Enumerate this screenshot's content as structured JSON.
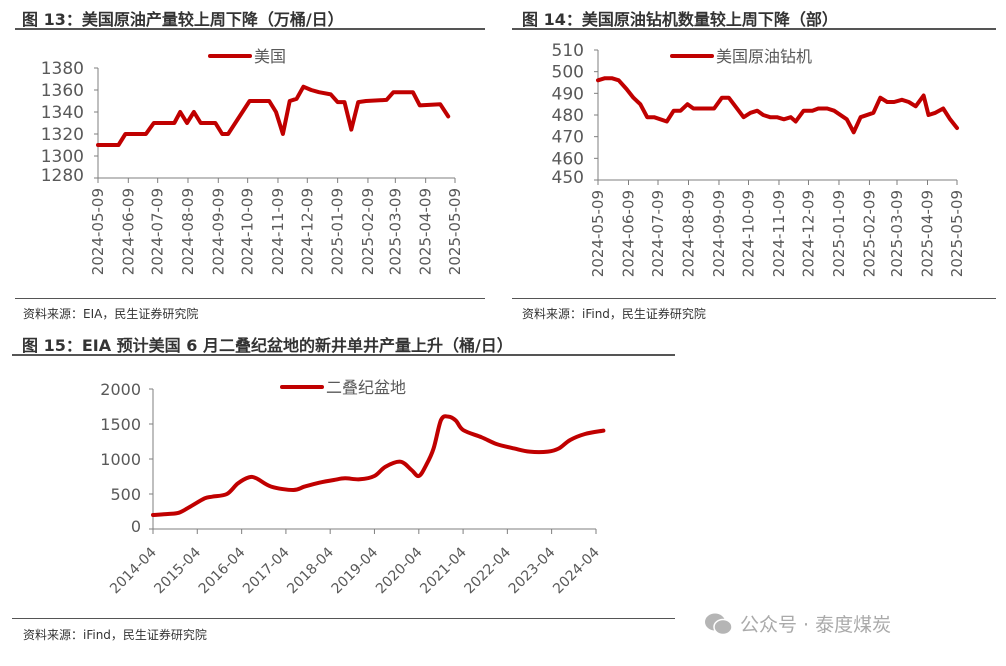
{
  "colors": {
    "line": "#C00000",
    "axis": "#7f7f7f",
    "text": "#595959"
  },
  "panels": [
    {
      "title": "图 13：美国原油产量较上周下降（万桶/日）",
      "source": "资料来源：EIA，民生证券研究院"
    },
    {
      "title": "图 14：美国原油钻机数量较上周下降（部）",
      "source": "资料来源：iFind，民生证券研究院"
    },
    {
      "title": "图 15：EIA 预计美国 6 月二叠纪盆地的新井单井产量上升（桶/日）",
      "source": "资料来源：iFind，民生证券研究院"
    }
  ],
  "watermark": {
    "text": "公众号 · 泰度煤炭",
    "icon": "wechat-icon"
  },
  "chart_data": [
    {
      "type": "line",
      "legend": "top-center",
      "grid": false,
      "ylim": [
        1280,
        1380
      ],
      "yticks": [
        1280,
        1300,
        1320,
        1340,
        1360,
        1380
      ],
      "xticks": [
        "2024-05-09",
        "2024-06-09",
        "2024-07-09",
        "2024-08-09",
        "2024-09-09",
        "2024-10-09",
        "2024-11-09",
        "2024-12-09",
        "2025-01-09",
        "2025-02-09",
        "2025-03-09",
        "2025-04-09",
        "2025-05-09"
      ],
      "series": [
        {
          "name": "美国",
          "points": [
            [
              "2024-05-09",
              1310
            ],
            [
              "2024-05-30",
              1310
            ],
            [
              "2024-06-06",
              1320
            ],
            [
              "2024-06-27",
              1320
            ],
            [
              "2024-07-05",
              1330
            ],
            [
              "2024-07-26",
              1330
            ],
            [
              "2024-08-01",
              1340
            ],
            [
              "2024-08-08",
              1330
            ],
            [
              "2024-08-15",
              1340
            ],
            [
              "2024-08-22",
              1330
            ],
            [
              "2024-09-06",
              1330
            ],
            [
              "2024-09-13",
              1320
            ],
            [
              "2024-09-19",
              1320
            ],
            [
              "2024-10-11",
              1350
            ],
            [
              "2024-10-31",
              1350
            ],
            [
              "2024-11-07",
              1340
            ],
            [
              "2024-11-14",
              1320
            ],
            [
              "2024-11-21",
              1350
            ],
            [
              "2024-11-28",
              1352
            ],
            [
              "2024-12-05",
              1363
            ],
            [
              "2024-12-13",
              1360
            ],
            [
              "2024-12-21",
              1358
            ],
            [
              "2025-01-02",
              1356
            ],
            [
              "2025-01-09",
              1349
            ],
            [
              "2025-01-16",
              1349
            ],
            [
              "2025-01-23",
              1324
            ],
            [
              "2025-01-30",
              1349
            ],
            [
              "2025-02-07",
              1350
            ],
            [
              "2025-02-28",
              1351
            ],
            [
              "2025-03-07",
              1358
            ],
            [
              "2025-03-27",
              1358
            ],
            [
              "2025-04-03",
              1346
            ],
            [
              "2025-04-24",
              1347
            ],
            [
              "2025-05-02",
              1336
            ]
          ]
        }
      ]
    },
    {
      "type": "line",
      "legend": "top-center",
      "grid": false,
      "ylim": [
        450,
        510
      ],
      "yticks": [
        450,
        460,
        470,
        480,
        490,
        500,
        510
      ],
      "xticks": [
        "2024-05-09",
        "2024-06-09",
        "2024-07-09",
        "2024-08-09",
        "2024-09-09",
        "2024-10-09",
        "2024-11-09",
        "2024-12-09",
        "2025-01-09",
        "2025-02-09",
        "2025-03-09",
        "2025-04-09",
        "2025-05-09"
      ],
      "series": [
        {
          "name": "美国原油钻机",
          "points": [
            [
              "2024-05-09",
              496
            ],
            [
              "2024-05-16",
              497
            ],
            [
              "2024-05-23",
              497
            ],
            [
              "2024-05-30",
              496
            ],
            [
              "2024-06-07",
              492
            ],
            [
              "2024-06-14",
              488
            ],
            [
              "2024-06-21",
              485
            ],
            [
              "2024-06-28",
              479
            ],
            [
              "2024-07-05",
              479
            ],
            [
              "2024-07-18",
              477
            ],
            [
              "2024-07-25",
              482
            ],
            [
              "2024-08-01",
              482
            ],
            [
              "2024-08-08",
              485
            ],
            [
              "2024-08-14",
              483
            ],
            [
              "2024-09-04",
              483
            ],
            [
              "2024-09-12",
              488
            ],
            [
              "2024-09-19",
              488
            ],
            [
              "2024-10-04",
              479
            ],
            [
              "2024-10-11",
              481
            ],
            [
              "2024-10-18",
              482
            ],
            [
              "2024-10-24",
              480
            ],
            [
              "2024-10-31",
              479
            ],
            [
              "2024-11-07",
              479
            ],
            [
              "2024-11-14",
              478
            ],
            [
              "2024-11-21",
              479
            ],
            [
              "2024-11-26",
              477
            ],
            [
              "2024-12-04",
              482
            ],
            [
              "2024-12-13",
              482
            ],
            [
              "2024-12-19",
              483
            ],
            [
              "2024-12-28",
              483
            ],
            [
              "2025-01-04",
              482
            ],
            [
              "2025-01-17",
              478
            ],
            [
              "2025-01-24",
              472
            ],
            [
              "2025-01-31",
              479
            ],
            [
              "2025-02-13",
              481
            ],
            [
              "2025-02-20",
              488
            ],
            [
              "2025-02-27",
              486
            ],
            [
              "2025-03-06",
              486
            ],
            [
              "2025-03-14",
              487
            ],
            [
              "2025-03-21",
              486
            ],
            [
              "2025-03-28",
              484
            ],
            [
              "2025-04-05",
              489
            ],
            [
              "2025-04-10",
              480
            ],
            [
              "2025-04-17",
              481
            ],
            [
              "2025-04-25",
              483
            ],
            [
              "2025-05-02",
              478
            ],
            [
              "2025-05-09",
              474
            ]
          ]
        }
      ]
    },
    {
      "type": "line",
      "legend": "top-center",
      "grid": false,
      "ylim": [
        0,
        2000
      ],
      "yticks": [
        0,
        500,
        1000,
        1500,
        2000
      ],
      "xticks": [
        "2014-04",
        "2015-04",
        "2016-04",
        "2017-04",
        "2018-04",
        "2019-04",
        "2020-04",
        "2021-04",
        "2022-04",
        "2023-04",
        "2024-04"
      ],
      "series": [
        {
          "name": "二叠纪盆地",
          "points": [
            [
              "2014-04",
              200
            ],
            [
              "2014-08",
              214
            ],
            [
              "2014-11",
              233
            ],
            [
              "2015-02",
              319
            ],
            [
              "2015-06",
              438
            ],
            [
              "2015-08",
              462
            ],
            [
              "2015-12",
              500
            ],
            [
              "2016-03",
              652
            ],
            [
              "2016-06",
              738
            ],
            [
              "2016-08",
              724
            ],
            [
              "2016-12",
              605
            ],
            [
              "2017-06",
              557
            ],
            [
              "2017-09",
              605
            ],
            [
              "2018-01",
              662
            ],
            [
              "2018-05",
              700
            ],
            [
              "2018-08",
              724
            ],
            [
              "2018-12",
              710
            ],
            [
              "2019-04",
              757
            ],
            [
              "2019-07",
              890
            ],
            [
              "2019-11",
              962
            ],
            [
              "2020-02",
              843
            ],
            [
              "2020-04",
              757
            ],
            [
              "2020-06",
              914
            ],
            [
              "2020-08",
              1152
            ],
            [
              "2020-10",
              1557
            ],
            [
              "2020-12",
              1605
            ],
            [
              "2021-02",
              1548
            ],
            [
              "2021-04",
              1414
            ],
            [
              "2021-09",
              1310
            ],
            [
              "2022-01",
              1214
            ],
            [
              "2022-06",
              1148
            ],
            [
              "2022-10",
              1105
            ],
            [
              "2023-03",
              1105
            ],
            [
              "2023-06",
              1152
            ],
            [
              "2023-09",
              1271
            ],
            [
              "2024-01",
              1357
            ],
            [
              "2024-06",
              1405
            ]
          ]
        }
      ]
    }
  ]
}
